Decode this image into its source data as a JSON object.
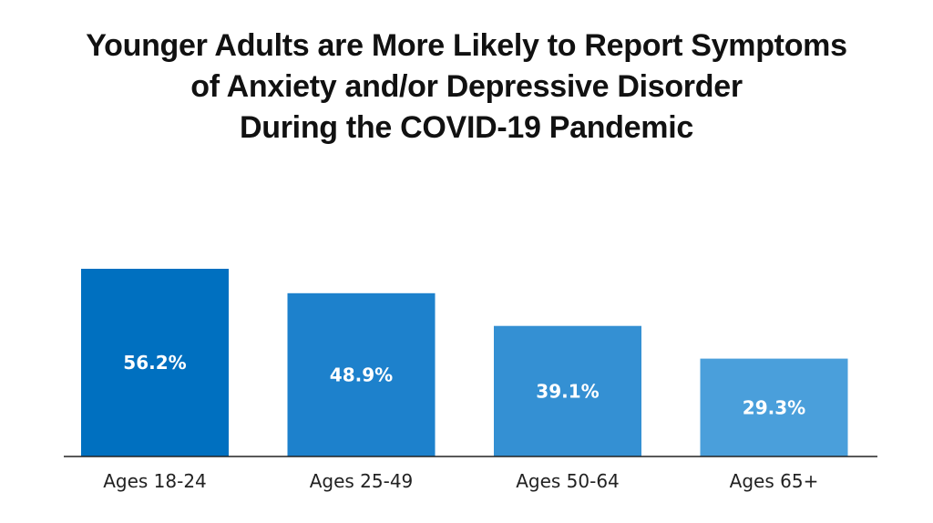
{
  "title_lines": [
    "Younger Adults are More Likely to Report Symptoms",
    "of Anxiety and/or Depressive Disorder",
    "During the COVID-19 Pandemic"
  ],
  "chart_data": {
    "type": "bar",
    "title": "Younger Adults are More Likely to Report Symptoms of Anxiety and/or Depressive Disorder During the COVID-19 Pandemic",
    "categories": [
      "Ages 18-24",
      "Ages 25-49",
      "Ages 50-64",
      "Ages 65+"
    ],
    "values": [
      56.2,
      48.9,
      39.1,
      29.3
    ],
    "value_labels": [
      "56.2%",
      "48.9%",
      "39.1%",
      "29.3%"
    ],
    "colors": [
      "#0070C0",
      "#1D81CC",
      "#3490D3",
      "#4A9FDB"
    ],
    "xlabel": "",
    "ylabel": "",
    "ylim": [
      0,
      56.2
    ],
    "grid": false,
    "legend": "none"
  }
}
